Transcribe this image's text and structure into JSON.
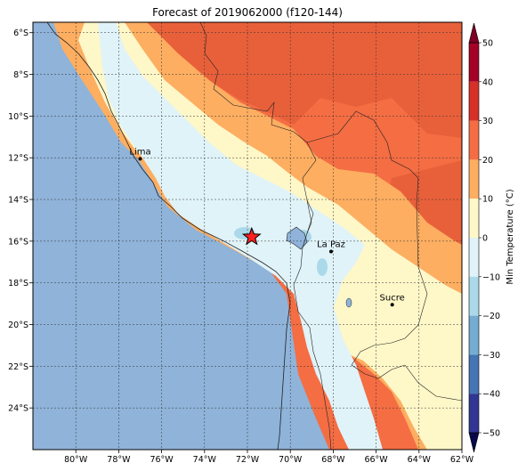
{
  "title": "Forecast of 2019062000 (f120-144)",
  "map": {
    "lon_range": [
      -82,
      -62
    ],
    "lat_range": [
      -26,
      -5.5
    ],
    "lon_ticks": [
      {
        "v": -80,
        "label": "80°W"
      },
      {
        "v": -78,
        "label": "78°W"
      },
      {
        "v": -76,
        "label": "76°W"
      },
      {
        "v": -74,
        "label": "74°W"
      },
      {
        "v": -72,
        "label": "72°W"
      },
      {
        "v": -70,
        "label": "70°W"
      },
      {
        "v": -68,
        "label": "68°W"
      },
      {
        "v": -66,
        "label": "66°W"
      },
      {
        "v": -64,
        "label": "64°W"
      },
      {
        "v": -62,
        "label": "62°W"
      }
    ],
    "lat_ticks": [
      {
        "v": -6,
        "label": "6°S"
      },
      {
        "v": -8,
        "label": "8°S"
      },
      {
        "v": -10,
        "label": "10°S"
      },
      {
        "v": -12,
        "label": "12°S"
      },
      {
        "v": -14,
        "label": "14°S"
      },
      {
        "v": -16,
        "label": "16°S"
      },
      {
        "v": -18,
        "label": "18°S"
      },
      {
        "v": -20,
        "label": "20°S"
      },
      {
        "v": -22,
        "label": "22°S"
      },
      {
        "v": -24,
        "label": "24°S"
      }
    ],
    "gridlines": true,
    "ocean_color": "#8fb3d9",
    "cities": [
      {
        "name": "Lima",
        "lon": -77.0,
        "lat": -12.05
      },
      {
        "name": "La Paz",
        "lon": -68.1,
        "lat": -16.5
      },
      {
        "name": "Sucre",
        "lon": -65.25,
        "lat": -19.05
      }
    ],
    "star": {
      "lon": -71.8,
      "lat": -15.8,
      "color": "#ff2020"
    }
  },
  "colorbar": {
    "label": "Min Temperature (°C)",
    "ticks": [
      "50",
      "40",
      "30",
      "20",
      "10",
      "0",
      "−10",
      "−20",
      "−30",
      "−40",
      "−50"
    ],
    "levels": [
      {
        "range": [
          40,
          50
        ],
        "color": "#a50026"
      },
      {
        "range": [
          30,
          40
        ],
        "color": "#d73027"
      },
      {
        "range": [
          20,
          30
        ],
        "color": "#f46d43"
      },
      {
        "range": [
          10,
          20
        ],
        "color": "#fdae61"
      },
      {
        "range": [
          0,
          10
        ],
        "color": "#fef7c8"
      },
      {
        "range": [
          -10,
          0
        ],
        "color": "#e0f3f8"
      },
      {
        "range": [
          -20,
          -10
        ],
        "color": "#abd9e9"
      },
      {
        "range": [
          -30,
          -20
        ],
        "color": "#74add1"
      },
      {
        "range": [
          -40,
          -30
        ],
        "color": "#4575b4"
      },
      {
        "range": [
          -50,
          -40
        ],
        "color": "#313695"
      }
    ],
    "extend_max_color": "#800026",
    "extend_min_color": "#08084a"
  }
}
